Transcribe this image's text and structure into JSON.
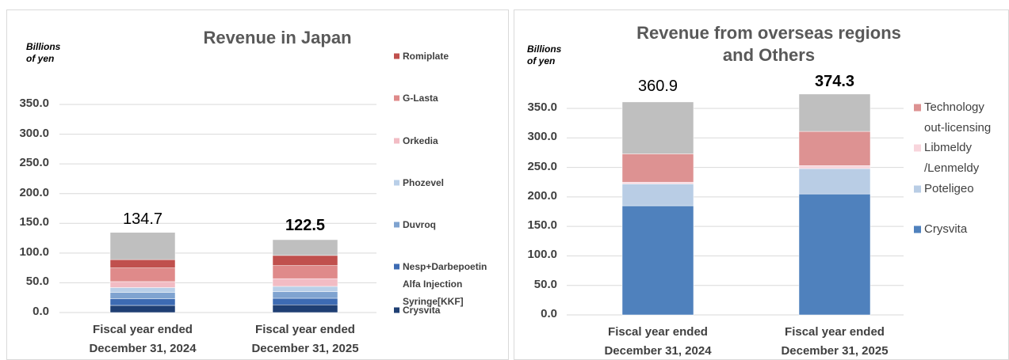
{
  "chart_data": [
    {
      "type": "stacked_bar",
      "title": "Revenue in Japan",
      "y_label": "Billions\nof yen",
      "categories": [
        "Fiscal year ended\nDecember 31, 2024",
        "Fiscal year ended\nDecember 31, 2025"
      ],
      "series": [
        {
          "name": "Crysvita",
          "color": "#1f3f73",
          "values": [
            12,
            13
          ]
        },
        {
          "name": "Nesp+Darbepoetin\nAlfa Injection\nSyringe[KKF]",
          "color": "#3d6bb3",
          "values": [
            11,
            11
          ]
        },
        {
          "name": "Duvroq",
          "color": "#7fa3d0",
          "values": [
            11,
            11
          ]
        },
        {
          "name": "Phozevel",
          "color": "#b9cfe8",
          "values": [
            8,
            9
          ]
        },
        {
          "name": "Orkedia",
          "color": "#f2bcc4",
          "values": [
            10,
            13
          ]
        },
        {
          "name": "G-Lasta",
          "color": "#df8a8a",
          "values": [
            23,
            22
          ]
        },
        {
          "name": "Romiplate",
          "color": "#c0504d",
          "values": [
            14,
            17
          ]
        },
        {
          "color": "#bfbfbf",
          "values": [
            45.7,
            26.5
          ]
        }
      ],
      "totals": [
        134.7,
        122.5
      ],
      "ylim": [
        0,
        350
      ],
      "yticks": [
        {
          "value": 0,
          "label": "0.0"
        },
        {
          "value": 50,
          "label": "50.0"
        },
        {
          "value": 100,
          "label": "100.0"
        },
        {
          "value": 150,
          "label": "150.0"
        },
        {
          "value": 200,
          "label": "200.0"
        },
        {
          "value": 250,
          "label": "250.0"
        },
        {
          "value": 300,
          "label": "300.0"
        },
        {
          "value": 350,
          "label": "350.0"
        }
      ],
      "grid": true
    },
    {
      "type": "stacked_bar",
      "title": "Revenue from overseas regions\nand Others",
      "y_label": "Billions\nof yen",
      "categories": [
        "Fiscal year ended\nDecember 31, 2024",
        "Fiscal year ended\nDecember 31, 2025"
      ],
      "series": [
        {
          "name": "Crysvita",
          "color": "#4f81bd",
          "values": [
            185,
            205
          ]
        },
        {
          "name": "Poteligeo",
          "color": "#b9cde5",
          "values": [
            37,
            43
          ]
        },
        {
          "name": "Libmeldy\n/Lenmeldy",
          "color": "#f8d5dc",
          "values": [
            3,
            5
          ]
        },
        {
          "name": "Technology\nout-licensing",
          "color": "#dd9292",
          "values": [
            48,
            58
          ]
        },
        {
          "color": "#bfbfbf",
          "values": [
            87.9,
            63.3
          ]
        }
      ],
      "totals": [
        360.9,
        374.3
      ],
      "ylim": [
        0,
        350
      ],
      "yticks": [
        {
          "value": 0,
          "label": "0.0"
        },
        {
          "value": 50,
          "label": "50.0"
        },
        {
          "value": 100,
          "label": "100.0"
        },
        {
          "value": 150,
          "label": "150.0"
        },
        {
          "value": 200,
          "label": "200.0"
        },
        {
          "value": 250,
          "label": "250.0"
        },
        {
          "value": 300,
          "label": "300.0"
        },
        {
          "value": 350,
          "label": "350.0"
        }
      ],
      "grid": true
    }
  ]
}
